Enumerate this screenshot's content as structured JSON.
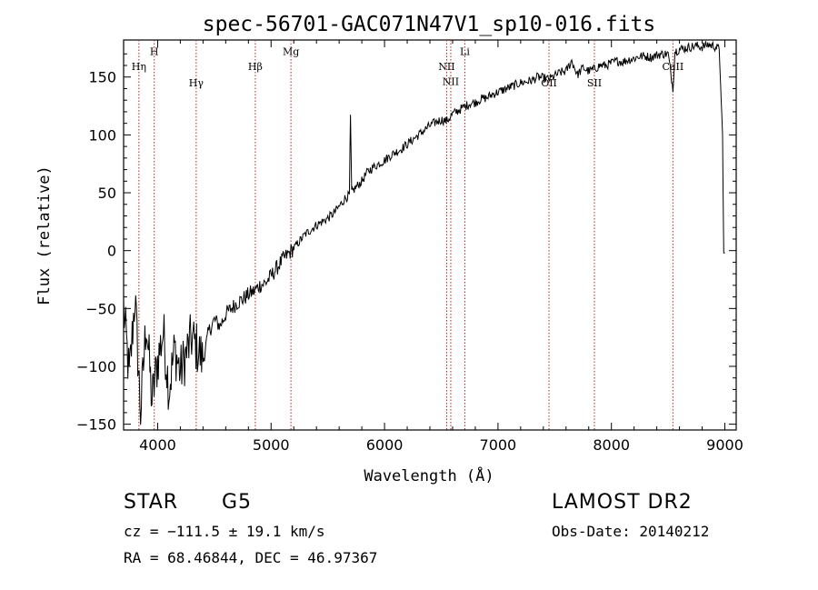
{
  "chart_data": {
    "type": "line",
    "title": "spec-56701-GAC071N47V1_sp10-016.fits",
    "xlabel": "Wavelength (Å)",
    "ylabel": "Flux (relative)",
    "xlim": [
      3700,
      9100
    ],
    "ylim": [
      -155,
      182
    ],
    "xticks": [
      4000,
      5000,
      6000,
      7000,
      8000,
      9000
    ],
    "xtick_labels": [
      "4000",
      "5000",
      "6000",
      "7000",
      "8000",
      "9000"
    ],
    "yticks": [
      -150,
      -100,
      -50,
      0,
      50,
      100,
      150
    ],
    "ytick_labels": [
      "−150",
      "−100",
      "−50",
      "0",
      "50",
      "100",
      "150"
    ],
    "grid": false,
    "line_color": "#000000",
    "marker_color": "#b22222",
    "lines": [
      {
        "label": "Hη",
        "x": 3835,
        "label_flux": 156
      },
      {
        "label": "H",
        "x": 3970,
        "label_flux": 169
      },
      {
        "label": "Hγ",
        "x": 4340,
        "label_flux": 142
      },
      {
        "label": "Hβ",
        "x": 4861,
        "label_flux": 156
      },
      {
        "label": "Mg",
        "x": 5175,
        "label_flux": 169
      },
      {
        "label": "NII",
        "x": 6548,
        "label_flux": 156
      },
      {
        "label": "NII",
        "x": 6584,
        "label_flux": 143
      },
      {
        "label": "Li",
        "x": 6708,
        "label_flux": 169
      },
      {
        "label": "OII",
        "x": 7450,
        "label_flux": 142
      },
      {
        "label": "SII",
        "x": 7850,
        "label_flux": 142
      },
      {
        "label": "CaII",
        "x": 8542,
        "label_flux": 156
      }
    ],
    "series": [
      {
        "x": [
          3700,
          3750,
          3800,
          3850,
          3900,
          3950,
          4000,
          4050,
          4100,
          4150,
          4200,
          4250,
          4300,
          4350,
          4400,
          4450,
          4500,
          4550,
          4600,
          4650,
          4700,
          4750,
          4800,
          4850,
          4900,
          4950,
          5000,
          5050,
          5100,
          5150,
          5200,
          5250,
          5300,
          5350,
          5400,
          5450,
          5500,
          5550,
          5600,
          5650,
          5690,
          5700,
          5710,
          5750,
          5800,
          5850,
          5900,
          5950,
          6000,
          6050,
          6100,
          6150,
          6200,
          6250,
          6300,
          6350,
          6400,
          6450,
          6500,
          6550,
          6600,
          6650,
          6700,
          6750,
          6800,
          6850,
          6900,
          6950,
          7000,
          7050,
          7100,
          7150,
          7200,
          7250,
          7300,
          7350,
          7400,
          7450,
          7500,
          7550,
          7600,
          7650,
          7700,
          7750,
          7800,
          7850,
          7900,
          7950,
          8000,
          8050,
          8100,
          8150,
          8200,
          8250,
          8300,
          8350,
          8400,
          8450,
          8500,
          8542,
          8560,
          8600,
          8650,
          8700,
          8750,
          8800,
          8850,
          8900,
          8950,
          8980,
          8990,
          9000
        ],
        "y": [
          -50,
          -110,
          -40,
          -140,
          -60,
          -130,
          -95,
          -70,
          -120,
          -85,
          -105,
          -90,
          -75,
          -85,
          -95,
          -70,
          -60,
          -65,
          -55,
          -50,
          -45,
          -42,
          -38,
          -35,
          -30,
          -28,
          -22,
          -15,
          -8,
          -3,
          2,
          8,
          14,
          18,
          22,
          25,
          28,
          32,
          38,
          45,
          48,
          115,
          50,
          55,
          60,
          68,
          72,
          75,
          78,
          82,
          85,
          88,
          92,
          96,
          100,
          104,
          108,
          111,
          113,
          112,
          118,
          121,
          124,
          127,
          128,
          131,
          132,
          135,
          137,
          139,
          141,
          143,
          145,
          146,
          147,
          150,
          149,
          148,
          151,
          154,
          155,
          164,
          152,
          158,
          155,
          157,
          160,
          160,
          162,
          164,
          163,
          165,
          166,
          168,
          168,
          167,
          169,
          170,
          170,
          140,
          172,
          174,
          175,
          176,
          177,
          176,
          178,
          177,
          174,
          100,
          -2,
          -2
        ]
      }
    ]
  },
  "info": {
    "class_label": "STAR",
    "subclass_label": "G5",
    "survey_label": "LAMOST DR2",
    "cz_text": "cz = −111.5 ± 19.1 km/s",
    "obs_date_text": "Obs-Date: 20140212",
    "coords_text": "RA =  68.46844, DEC =  46.97367"
  }
}
